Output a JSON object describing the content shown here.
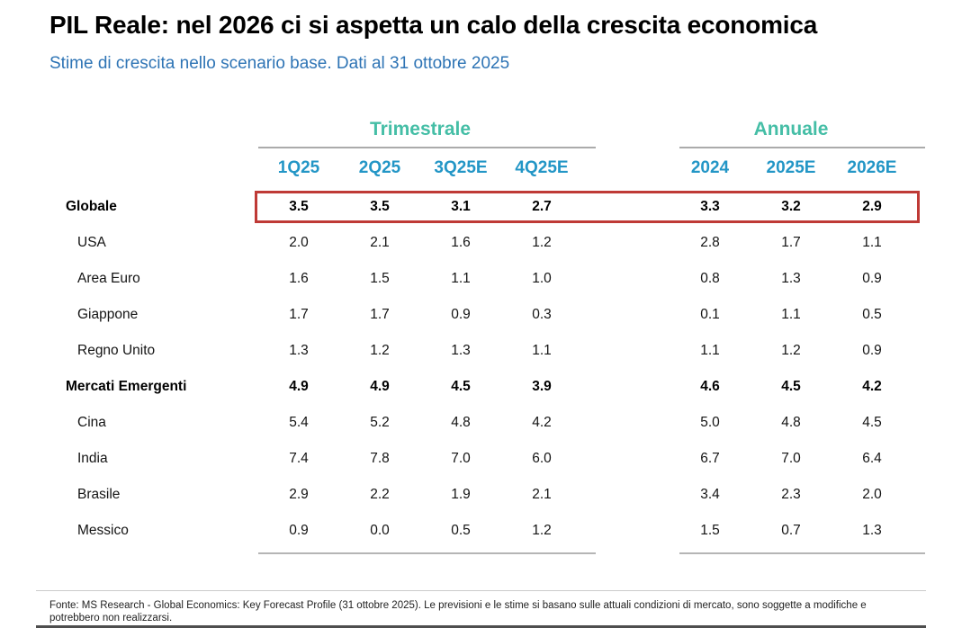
{
  "chart_data": {
    "type": "table",
    "title": "PIL Reale: nel 2026 ci si aspetta un calo della crescita economica",
    "subtitle": "Stime di crescita nello scenario base. Dati al 31 ottobre 2025",
    "column_groups": [
      {
        "label": "Trimestrale",
        "columns": [
          "1Q25",
          "2Q25",
          "3Q25E",
          "4Q25E"
        ]
      },
      {
        "label": "Annuale",
        "columns": [
          "2024",
          "2025E",
          "2026E"
        ]
      }
    ],
    "rows": [
      {
        "label": "Globale",
        "bold": true,
        "indent": false,
        "highlighted": true,
        "quarterly": [
          "3.5",
          "3.5",
          "3.1",
          "2.7"
        ],
        "annual": [
          "3.3",
          "3.2",
          "2.9"
        ]
      },
      {
        "label": "USA",
        "bold": false,
        "indent": true,
        "highlighted": false,
        "quarterly": [
          "2.0",
          "2.1",
          "1.6",
          "1.2"
        ],
        "annual": [
          "2.8",
          "1.7",
          "1.1"
        ]
      },
      {
        "label": "Area Euro",
        "bold": false,
        "indent": true,
        "highlighted": false,
        "quarterly": [
          "1.6",
          "1.5",
          "1.1",
          "1.0"
        ],
        "annual": [
          "0.8",
          "1.3",
          "0.9"
        ]
      },
      {
        "label": "Giappone",
        "bold": false,
        "indent": true,
        "highlighted": false,
        "quarterly": [
          "1.7",
          "1.7",
          "0.9",
          "0.3"
        ],
        "annual": [
          "0.1",
          "1.1",
          "0.5"
        ]
      },
      {
        "label": "Regno Unito",
        "bold": false,
        "indent": true,
        "highlighted": false,
        "quarterly": [
          "1.3",
          "1.2",
          "1.3",
          "1.1"
        ],
        "annual": [
          "1.1",
          "1.2",
          "0.9"
        ]
      },
      {
        "label": "Mercati Emergenti",
        "bold": true,
        "indent": false,
        "highlighted": false,
        "quarterly": [
          "4.9",
          "4.9",
          "4.5",
          "3.9"
        ],
        "annual": [
          "4.6",
          "4.5",
          "4.2"
        ]
      },
      {
        "label": "Cina",
        "bold": false,
        "indent": true,
        "highlighted": false,
        "quarterly": [
          "5.4",
          "5.2",
          "4.8",
          "4.2"
        ],
        "annual": [
          "5.0",
          "4.8",
          "4.5"
        ]
      },
      {
        "label": "India",
        "bold": false,
        "indent": true,
        "highlighted": false,
        "quarterly": [
          "7.4",
          "7.8",
          "7.0",
          "6.0"
        ],
        "annual": [
          "6.7",
          "7.0",
          "6.4"
        ]
      },
      {
        "label": "Brasile",
        "bold": false,
        "indent": true,
        "highlighted": false,
        "quarterly": [
          "2.9",
          "2.2",
          "1.9",
          "2.1"
        ],
        "annual": [
          "3.4",
          "2.3",
          "2.0"
        ]
      },
      {
        "label": "Messico",
        "bold": false,
        "indent": true,
        "highlighted": false,
        "quarterly": [
          "0.9",
          "0.0",
          "0.5",
          "1.2"
        ],
        "annual": [
          "1.5",
          "0.7",
          "1.3"
        ]
      }
    ],
    "layout": {
      "grid": "off",
      "highlight_row": "Globale"
    }
  },
  "footer": {
    "source": "Fonte: MS Research - Global Economics: Key Forecast Profile (31 ottobre 2025). Le previsioni e le stime si basano sulle attuali condizioni di mercato, sono soggette a modifiche e potrebbero non realizzarsi."
  },
  "colors": {
    "title_black": "#000000",
    "subtitle_blue": "#2e74b5",
    "group_header_teal": "#45bea6",
    "column_header_blue": "#2396c6",
    "highlight_red": "#bf3a36",
    "rule_grey": "#ababab",
    "footer_bar_grey": "#4e4e4e"
  }
}
